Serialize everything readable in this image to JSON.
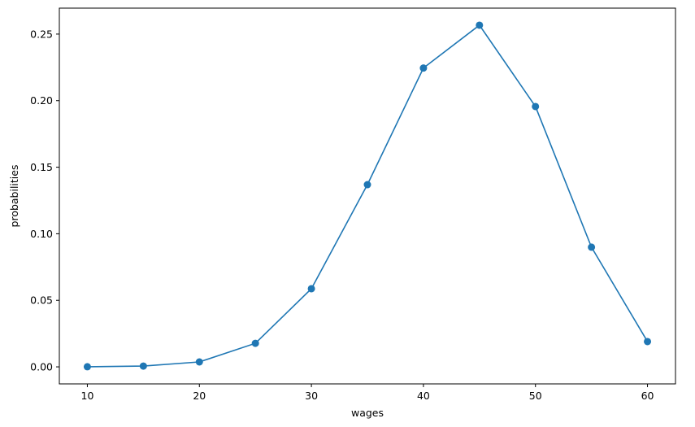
{
  "chart_data": {
    "type": "line",
    "title": "",
    "xlabel": "wages",
    "ylabel": "probabilities",
    "x": [
      10,
      15,
      20,
      25,
      30,
      35,
      40,
      45,
      50,
      55,
      60
    ],
    "series": [
      {
        "values": [
          0.0001,
          0.0006,
          0.0037,
          0.0177,
          0.0587,
          0.1369,
          0.2245,
          0.2567,
          0.1956,
          0.0899,
          0.019
        ],
        "color": "#1f77b4",
        "marker": "circle"
      }
    ],
    "xlim": [
      7.5,
      62.5
    ],
    "ylim": [
      -0.0128,
      0.2695
    ],
    "xticks": [
      10,
      20,
      30,
      40,
      50,
      60
    ],
    "xtick_labels": [
      "10",
      "20",
      "30",
      "40",
      "50",
      "60"
    ],
    "yticks": [
      0,
      0.05,
      0.1,
      0.15,
      0.2,
      0.25
    ],
    "ytick_labels": [
      "0.00",
      "0.05",
      "0.10",
      "0.15",
      "0.20",
      "0.25"
    ],
    "grid": false
  }
}
